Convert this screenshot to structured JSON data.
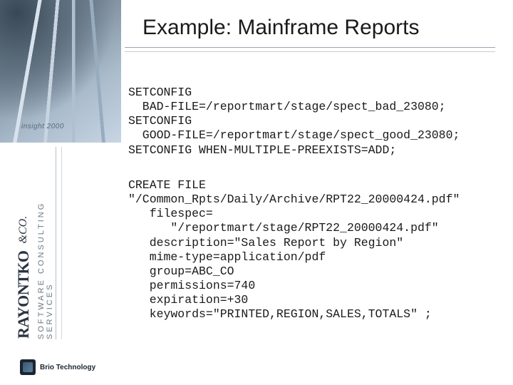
{
  "slide": {
    "title": "Example: Mainframe Reports",
    "title_fontsize": 30,
    "title_color": "#1a1a1a",
    "underline_color_1": "#9aa3ad",
    "underline_color_2": "#c5ccd4",
    "background_color": "#ffffff"
  },
  "sidebar": {
    "insight_label": "insight 2000",
    "brand_name": "RAYONTKO",
    "brand_suffix": "&CO.",
    "brand_sub": "SOFTWARE CONSULTING SERVICES",
    "brio_label": "Brio Technology",
    "brand_color": "#2a3440",
    "sub_color": "#6a7883"
  },
  "code": {
    "font_family": "Courier New",
    "font_size": 16.5,
    "text_color": "#1a1a1a",
    "block1_lines": [
      "SETCONFIG",
      "  BAD-FILE=/reportmart/stage/spect_bad_23080;",
      "SETCONFIG",
      "  GOOD-FILE=/reportmart/stage/spect_good_23080;",
      "SETCONFIG WHEN-MULTIPLE-PREEXISTS=ADD;"
    ],
    "block2_lines": [
      "CREATE FILE",
      "\"/Common_Rpts/Daily/Archive/RPT22_20000424.pdf\"",
      "   filespec=",
      "      \"/reportmart/stage/RPT22_20000424.pdf\"",
      "   description=\"Sales Report by Region\"",
      "   mime-type=application/pdf",
      "   group=ABC_CO",
      "   permissions=740",
      "   expiration=+30",
      "   keywords=\"PRINTED,REGION,SALES,TOTALS\" ;"
    ]
  }
}
